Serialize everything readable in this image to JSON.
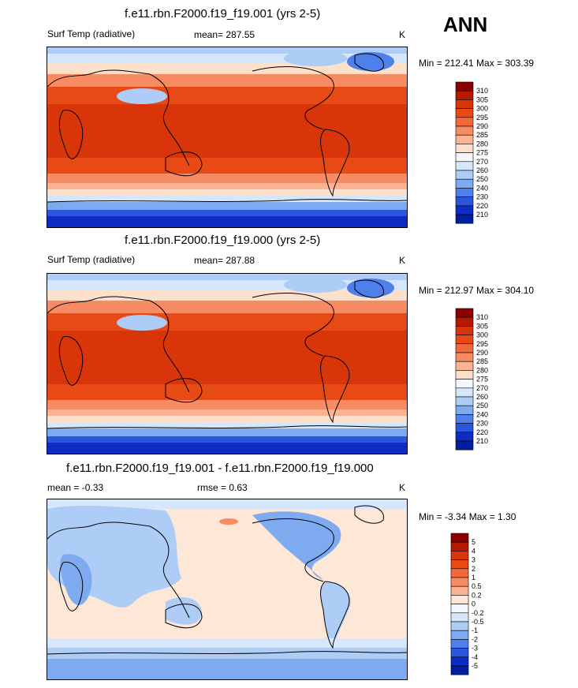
{
  "season": "ANN",
  "chart_data": [
    {
      "type": "heatmap",
      "title": "f.e11.rbn.F2000.f19_f19.001 (yrs 2-5)",
      "variable": "Surf Temp (radiative)",
      "mean_text": "mean= 287.55",
      "units": "K",
      "minmax_text": "Min = 212.41 Max = 303.39",
      "min": 212.41,
      "max": 303.39,
      "levels": [
        "310",
        "305",
        "300",
        "295",
        "290",
        "285",
        "280",
        "275",
        "270",
        "260",
        "250",
        "240",
        "230",
        "220",
        "210"
      ],
      "colors": [
        "#8b0000",
        "#b71800",
        "#d8360a",
        "#e84a16",
        "#f26a3c",
        "#f78b64",
        "#fbb394",
        "#fde0cc",
        "#f3f7fd",
        "#d6e6fb",
        "#aecdf6",
        "#7eaaf0",
        "#4d80ea",
        "#2a55dd",
        "#0e2cc4",
        "#001f9e"
      ]
    },
    {
      "type": "heatmap",
      "title": "f.e11.rbn.F2000.f19_f19.000 (yrs 2-5)",
      "variable": "Surf Temp (radiative)",
      "mean_text": "mean= 287.88",
      "units": "K",
      "minmax_text": "Min = 212.97 Max = 304.10",
      "min": 212.97,
      "max": 304.1,
      "levels": [
        "310",
        "305",
        "300",
        "295",
        "290",
        "285",
        "280",
        "275",
        "270",
        "260",
        "250",
        "240",
        "230",
        "220",
        "210"
      ],
      "colors": [
        "#8b0000",
        "#b71800",
        "#d8360a",
        "#e84a16",
        "#f26a3c",
        "#f78b64",
        "#fbb394",
        "#fde0cc",
        "#f3f7fd",
        "#d6e6fb",
        "#aecdf6",
        "#7eaaf0",
        "#4d80ea",
        "#2a55dd",
        "#0e2cc4",
        "#001f9e"
      ]
    },
    {
      "type": "heatmap",
      "title": "f.e11.rbn.F2000.f19_f19.001 - f.e11.rbn.F2000.f19_f19.000",
      "mean_text": "mean =  -0.33",
      "rmse_text": "rmse =   0.63",
      "units": "K",
      "minmax_text": "Min =  -3.34 Max =   1.30",
      "min": -3.34,
      "max": 1.3,
      "levels": [
        "5",
        "4",
        "3",
        "2",
        "1",
        "0.5",
        "0.2",
        "0",
        "-0.2",
        "-0.5",
        "-1",
        "-2",
        "-3",
        "-4",
        "-5"
      ],
      "colors": [
        "#8b0000",
        "#b71800",
        "#d8360a",
        "#e84a16",
        "#f26a3c",
        "#f78b64",
        "#fbb394",
        "#fde8d8",
        "#f3f7fd",
        "#d6e6fb",
        "#aecdf6",
        "#7eaaf0",
        "#4d80ea",
        "#2a55dd",
        "#0e2cc4",
        "#001f9e"
      ]
    }
  ]
}
